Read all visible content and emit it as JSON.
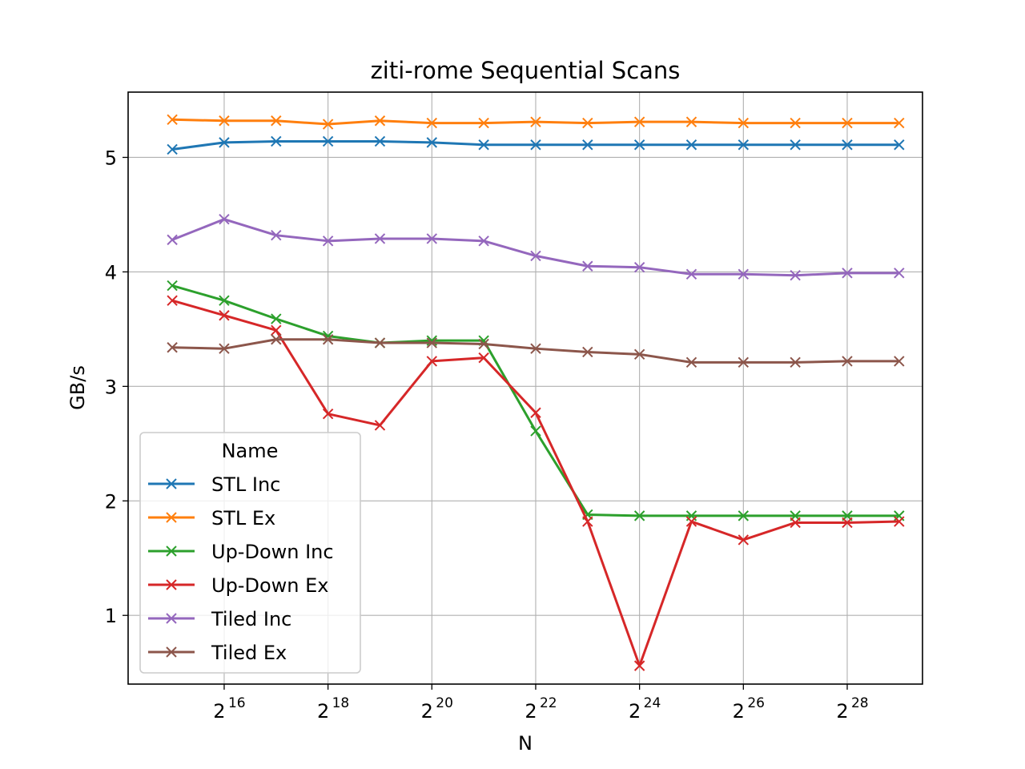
{
  "chart_data": {
    "type": "line",
    "title": "ziti-rome Sequential Scans",
    "xlabel": "N",
    "ylabel": "GB/s",
    "x_scale": "log2",
    "x": [
      32768,
      65536,
      131072,
      262144,
      524288,
      1048576,
      2097152,
      4194304,
      8388608,
      16777216,
      33554432,
      67108864,
      134217728,
      268435456,
      536870912
    ],
    "xlim_log2": [
      14.15,
      29.45
    ],
    "ylim": [
      0.4,
      5.57
    ],
    "x_ticks": [
      {
        "base": "2",
        "exp": "16",
        "log2": 16
      },
      {
        "base": "2",
        "exp": "18",
        "log2": 18
      },
      {
        "base": "2",
        "exp": "20",
        "log2": 20
      },
      {
        "base": "2",
        "exp": "22",
        "log2": 22
      },
      {
        "base": "2",
        "exp": "24",
        "log2": 24
      },
      {
        "base": "2",
        "exp": "26",
        "log2": 26
      },
      {
        "base": "2",
        "exp": "28",
        "log2": 28
      }
    ],
    "y_ticks": [
      {
        "label": "1",
        "value": 1
      },
      {
        "label": "2",
        "value": 2
      },
      {
        "label": "3",
        "value": 3
      },
      {
        "label": "4",
        "value": 4
      },
      {
        "label": "5",
        "value": 5
      }
    ],
    "grid": true,
    "legend": {
      "title": "Name",
      "position": "lower-left"
    },
    "marker": "x",
    "series": [
      {
        "name": "STL Inc",
        "color": "#1f77b4",
        "values": [
          5.07,
          5.13,
          5.14,
          5.14,
          5.14,
          5.13,
          5.11,
          5.11,
          5.11,
          5.11,
          5.11,
          5.11,
          5.11,
          5.11,
          5.11
        ]
      },
      {
        "name": "STL Ex",
        "color": "#ff7f0e",
        "values": [
          5.33,
          5.32,
          5.32,
          5.29,
          5.32,
          5.3,
          5.3,
          5.31,
          5.3,
          5.31,
          5.31,
          5.3,
          5.3,
          5.3,
          5.3
        ]
      },
      {
        "name": "Up-Down Inc",
        "color": "#2ca02c",
        "values": [
          3.88,
          3.75,
          3.59,
          3.44,
          3.38,
          3.4,
          3.4,
          2.61,
          1.88,
          1.87,
          1.87,
          1.87,
          1.87,
          1.87,
          1.87
        ]
      },
      {
        "name": "Up-Down Ex",
        "color": "#d62728",
        "values": [
          3.75,
          3.62,
          3.49,
          2.76,
          2.66,
          3.22,
          3.25,
          2.77,
          1.82,
          0.56,
          1.82,
          1.66,
          1.81,
          1.81,
          1.82
        ]
      },
      {
        "name": "Tiled Inc",
        "color": "#9467bd",
        "values": [
          4.28,
          4.46,
          4.32,
          4.27,
          4.29,
          4.29,
          4.27,
          4.14,
          4.05,
          4.04,
          3.98,
          3.98,
          3.97,
          3.99,
          3.99
        ]
      },
      {
        "name": "Tiled Ex",
        "color": "#8c564b",
        "values": [
          3.34,
          3.33,
          3.41,
          3.41,
          3.38,
          3.38,
          3.37,
          3.33,
          3.3,
          3.28,
          3.21,
          3.21,
          3.21,
          3.22,
          3.22
        ]
      }
    ]
  }
}
